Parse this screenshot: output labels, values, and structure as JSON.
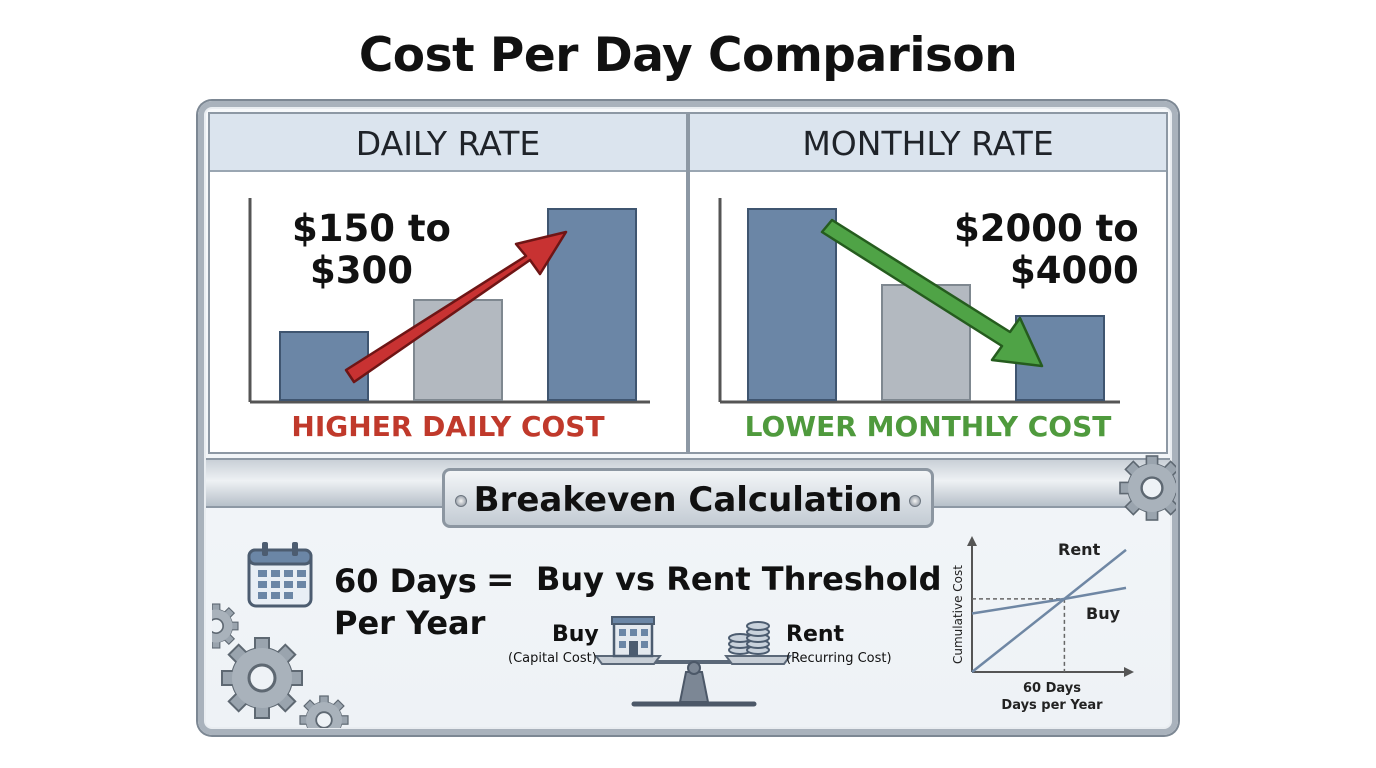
{
  "title": "Cost Per Day Comparison",
  "daily": {
    "header": "DAILY RATE",
    "rate_line1": "$150 to",
    "rate_line2": "$300",
    "label": "HIGHER DAILY COST",
    "label_color": "#c0392b",
    "arrow_color": "#c83232"
  },
  "monthly": {
    "header": "MONTHLY RATE",
    "rate_line1": "$2000 to",
    "rate_line2": "$4000",
    "label": "LOWER MONTHLY COST",
    "label_color": "#4f9a3d",
    "arrow_color": "#4fa346"
  },
  "colors": {
    "bar_blue": "#6b86a6",
    "bar_gray": "#b3b9c0",
    "frame": "#a9b2bc"
  },
  "breakeven": {
    "title": "Breakeven Calculation",
    "days_line1": "60 Days",
    "days_line2": "Per Year",
    "equals": "=",
    "threshold": "Buy vs Rent Threshold",
    "buy_label": "Buy",
    "buy_sub": "(Capital Cost)",
    "rent_label": "Rent",
    "rent_sub": "(Recurring Cost)",
    "icons": [
      "calendar-icon",
      "building-icon",
      "coins-icon",
      "scale-icon",
      "gear-icon"
    ]
  },
  "chart_data": {
    "type": "line",
    "ylabel": "Cumulative Cost",
    "xlabel": "Days per Year",
    "series": [
      {
        "name": "Rent",
        "x": [
          0,
          60,
          100
        ],
        "values": [
          0,
          1,
          1.67
        ]
      },
      {
        "name": "Buy",
        "x": [
          0,
          60,
          100
        ],
        "values": [
          0.8,
          1,
          1.15
        ]
      }
    ],
    "annotations": [
      "60 Days"
    ],
    "breakeven_x": 60,
    "grid": false
  }
}
